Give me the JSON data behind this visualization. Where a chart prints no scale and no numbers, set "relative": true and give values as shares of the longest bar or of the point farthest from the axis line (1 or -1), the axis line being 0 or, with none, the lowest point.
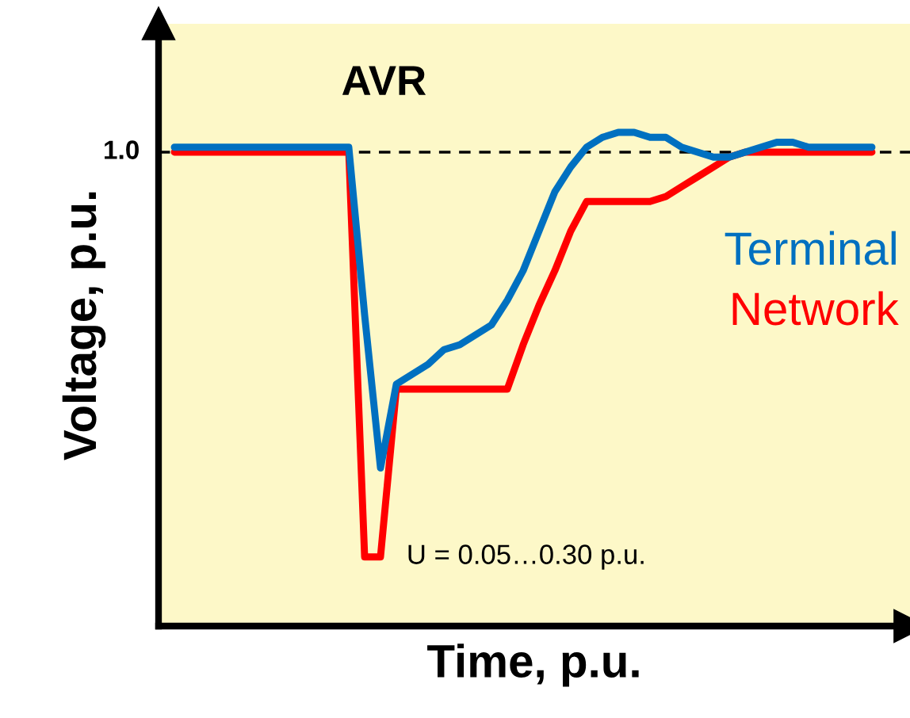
{
  "chart_data": {
    "type": "line",
    "title": "AVR",
    "xlabel": "Time, p.u.",
    "ylabel": "Voltage, p.u.",
    "relative": true,
    "categories": [
      null,
      null,
      null,
      null,
      null,
      null,
      null,
      null,
      null,
      null,
      null,
      null,
      null,
      null,
      null,
      null,
      null,
      null,
      null,
      null,
      null,
      null,
      null,
      null,
      null,
      null,
      null,
      null,
      null,
      null,
      null,
      null,
      null,
      null,
      null,
      null,
      null,
      null,
      null,
      null,
      null,
      null,
      null,
      null,
      null
    ],
    "series": [
      {
        "name": "Network",
        "color": "#ff0000",
        "values": [
          0.96,
          0.96,
          0.96,
          0.96,
          0.96,
          0.96,
          0.96,
          0.96,
          0.96,
          0.96,
          0.96,
          0.96,
          0.14,
          0.14,
          0.48,
          0.48,
          0.48,
          0.48,
          0.48,
          0.48,
          0.48,
          0.48,
          0.57,
          0.65,
          0.72,
          0.8,
          0.86,
          0.86,
          0.86,
          0.86,
          0.86,
          0.87,
          0.89,
          0.91,
          0.93,
          0.95,
          0.96,
          0.96,
          0.96,
          0.96,
          0.96,
          0.96,
          0.96,
          0.96,
          0.96
        ]
      },
      {
        "name": "Terminal",
        "color": "#0070c0",
        "values": [
          0.97,
          0.97,
          0.97,
          0.97,
          0.97,
          0.97,
          0.97,
          0.97,
          0.97,
          0.97,
          0.97,
          0.97,
          0.63,
          0.32,
          0.49,
          0.51,
          0.53,
          0.56,
          0.57,
          0.59,
          0.61,
          0.66,
          0.72,
          0.8,
          0.88,
          0.93,
          0.97,
          0.99,
          1.0,
          1.0,
          0.99,
          0.99,
          0.97,
          0.96,
          0.95,
          0.95,
          0.96,
          0.97,
          0.98,
          0.98,
          0.97,
          0.97,
          0.97,
          0.97,
          0.97
        ]
      }
    ],
    "ref_lines": [
      {
        "axis": "y",
        "value": 0.96,
        "label": "1.0",
        "color": "#000000",
        "line_style": "dashed"
      }
    ],
    "annotations": [
      "U = 0.05…0.30 p.u."
    ]
  }
}
